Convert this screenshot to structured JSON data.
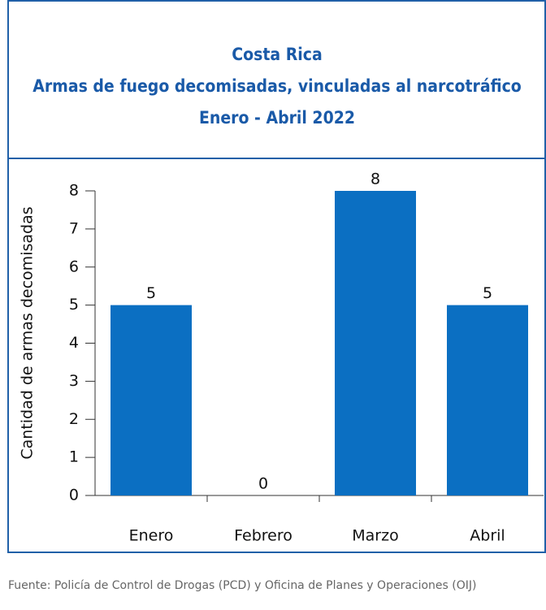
{
  "chart_data": {
    "type": "bar",
    "title": "Costa Rica",
    "subtitle": "Armas de fuego decomisadas, vinculadas al narcotráfico",
    "period": "Enero - Abril 2022",
    "y_label": "Cantidad de armas decomisadas",
    "categories": [
      "Enero",
      "Febrero",
      "Marzo",
      "Abril"
    ],
    "values": [
      5,
      0,
      8,
      5
    ],
    "color": "#0b6fc2",
    "ylim": [
      0,
      8
    ],
    "yticks": [
      0,
      1,
      2,
      3,
      4,
      5,
      6,
      7,
      8
    ],
    "grid": false,
    "source": "Fuente: Policía de Control de Drogas (PCD) y Oficina de Planes y Operaciones (OIJ)"
  }
}
